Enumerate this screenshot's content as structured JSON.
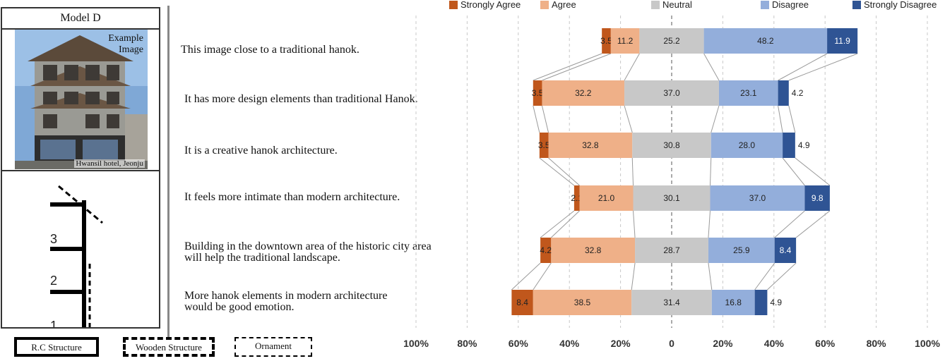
{
  "panel": {
    "title": "Model D",
    "photo_caption": "Example\nImage",
    "photo_credit": "Hwansil hotel, Jeonju",
    "floors": [
      "3",
      "2",
      "1"
    ]
  },
  "legend_boxes": [
    "R.C Structure",
    "Wooden Structure",
    "Ornament"
  ],
  "chart_data": {
    "type": "bar",
    "orientation": "horizontal",
    "stacked": "diverging",
    "center_category": "Neutral",
    "categories": [
      "This image close to a traditional hanok.",
      "It has more design elements than traditional Hanok.",
      "It is a creative hanok architecture.",
      "It feels more intimate than modern architecture.",
      "Building in the downtown area of the historic city area\nwill help the traditional landscape.",
      "More hanok elements in modern architecture\nwould be good emotion."
    ],
    "series": [
      {
        "name": "Strongly Agree",
        "color": "#c0571c",
        "values": [
          3.5,
          3.5,
          3.5,
          2.1,
          4.2,
          8.4
        ]
      },
      {
        "name": "Agree",
        "color": "#efb088",
        "values": [
          11.2,
          32.2,
          32.8,
          21.0,
          32.8,
          38.5
        ]
      },
      {
        "name": "Neutral",
        "color": "#c8c8c8",
        "values": [
          25.2,
          37.0,
          30.8,
          30.1,
          28.7,
          31.4
        ]
      },
      {
        "name": "Disagree",
        "color": "#93aedb",
        "values": [
          48.2,
          23.1,
          28.0,
          37.0,
          25.9,
          16.8
        ]
      },
      {
        "name": "Strongly Disagree",
        "color": "#2f5494",
        "values": [
          11.9,
          4.2,
          4.9,
          9.8,
          8.4,
          4.9
        ]
      }
    ],
    "value_labels": [
      [
        "3.5",
        "11.2",
        "25.2",
        "48.2",
        "11.9"
      ],
      [
        "3.5",
        "32.2",
        "37.0",
        "23.1",
        "4.2"
      ],
      [
        "3.5",
        "32.8",
        "30.8",
        "28.0",
        "4.9"
      ],
      [
        "2.1",
        "21.0",
        "30.1",
        "37.0",
        "9.8"
      ],
      [
        "4.2",
        "32.8",
        "28.7",
        "25.9",
        "8.4"
      ],
      [
        "8.4",
        "38.5",
        "31.4",
        "16.8",
        "4.9"
      ]
    ],
    "x_ticks": [
      -100,
      -80,
      -60,
      -40,
      -20,
      0,
      20,
      40,
      60,
      80,
      100
    ],
    "x_tick_labels": [
      "100%",
      "80%",
      "60%",
      "40%",
      "20%",
      "0",
      "20%",
      "40%",
      "60%",
      "80%",
      "100%"
    ],
    "xlim": [
      -100,
      100
    ],
    "legend_position": "top",
    "grid": "vertical dashed"
  }
}
